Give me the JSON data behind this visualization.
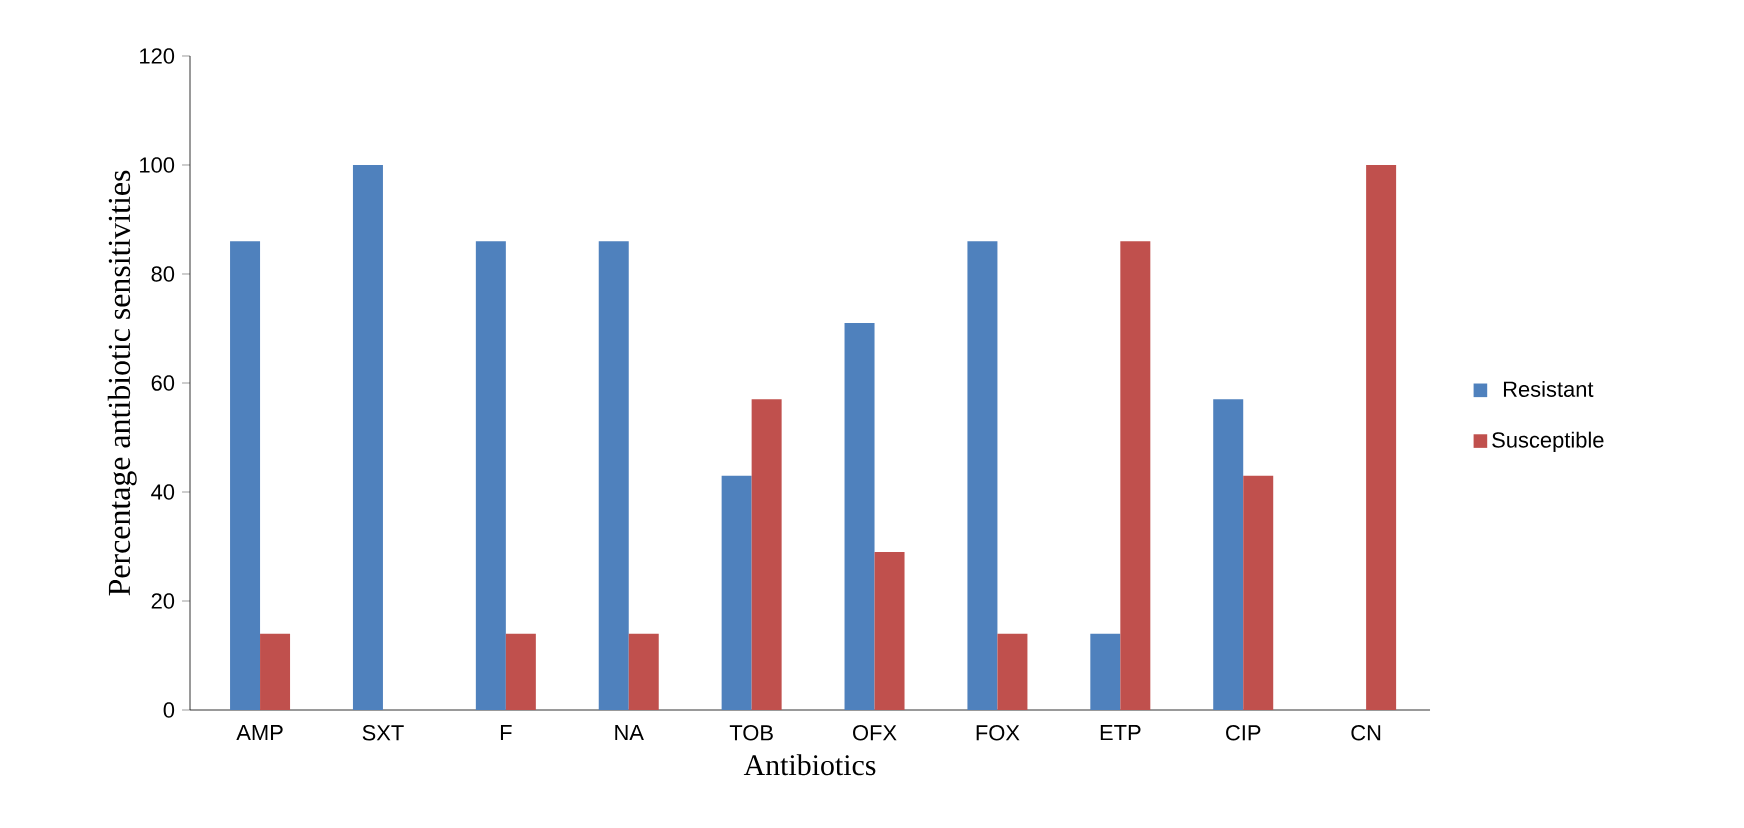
{
  "chart_data": {
    "type": "bar",
    "xlabel": "Antibiotics",
    "ylabel": "Percentage antibiotic sensitivities",
    "categories": [
      "AMP",
      "SXT",
      "F",
      "NA",
      "TOB",
      "OFX",
      "FOX",
      "ETP",
      "CIP",
      "CN"
    ],
    "series": [
      {
        "name": "Resistant",
        "color": "#4f81bd",
        "values": [
          86,
          100,
          86,
          86,
          43,
          71,
          86,
          14,
          57,
          0
        ]
      },
      {
        "name": "Susceptible",
        "color": "#c0504d",
        "values": [
          14,
          0,
          14,
          14,
          57,
          29,
          14,
          86,
          43,
          100
        ]
      }
    ],
    "ylim": [
      0,
      120
    ],
    "yticks": [
      0,
      20,
      40,
      60,
      80,
      100,
      120
    ],
    "grid": false,
    "legend": "right"
  }
}
